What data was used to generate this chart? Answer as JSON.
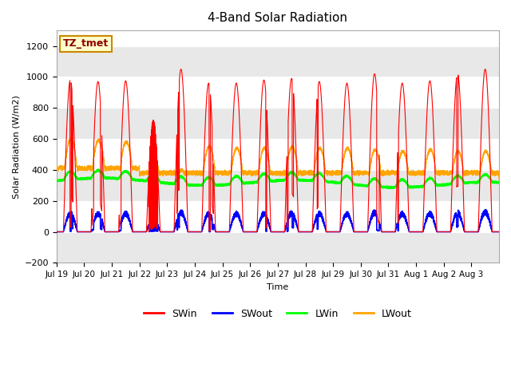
{
  "title": "4-Band Solar Radiation",
  "ylabel": "Solar Radiation (W/m2)",
  "xlabel": "Time",
  "annotation": "TZ_tmet",
  "ylim": [
    -200,
    1300
  ],
  "yticks": [
    -200,
    0,
    200,
    400,
    600,
    800,
    1000,
    1200
  ],
  "xtick_labels": [
    "Jul 19",
    "Jul 20",
    "Jul 21",
    "Jul 22",
    "Jul 23",
    "Jul 24",
    "Jul 25",
    "Jul 26",
    "Jul 27",
    "Jul 28",
    "Jul 29",
    "Jul 30",
    "Jul 31",
    "Aug 1",
    "Aug 2",
    "Aug 3"
  ],
  "colors": {
    "SWin": "#ff0000",
    "SWout": "#0000ff",
    "LWin": "#00ff00",
    "LWout": "#ffa500"
  },
  "background_color": "#ffffff",
  "plot_bg_color": "#ffffff",
  "band_colors": [
    "#e8e8e8",
    "#ffffff"
  ],
  "n_days": 16,
  "pts_per_day": 288,
  "seed": 42
}
